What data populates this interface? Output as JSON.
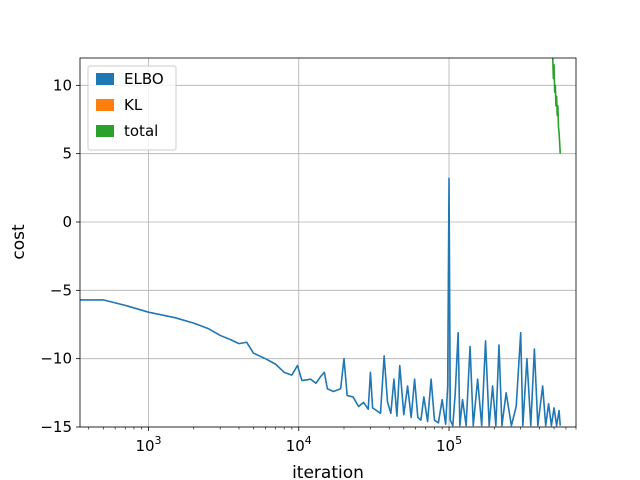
{
  "chart_data": {
    "type": "line",
    "xscale": "log",
    "xlabel": "iteration",
    "ylabel": "cost",
    "xlim": [
      350,
      700000
    ],
    "ylim": [
      -15,
      12
    ],
    "grid": true,
    "legend_position": "top-left",
    "x_ticks": [
      {
        "value": 1000,
        "base": "10",
        "exp": "3"
      },
      {
        "value": 10000,
        "base": "10",
        "exp": "4"
      },
      {
        "value": 100000,
        "base": "10",
        "exp": "5"
      }
    ],
    "y_ticks": [
      {
        "value": -15,
        "label": "−15"
      },
      {
        "value": -10,
        "label": "−10"
      },
      {
        "value": -5,
        "label": "−5"
      },
      {
        "value": 0,
        "label": "0"
      },
      {
        "value": 5,
        "label": "5"
      },
      {
        "value": 10,
        "label": "10"
      }
    ],
    "series": [
      {
        "name": "ELBO",
        "color": "#1f77b4",
        "points": [
          [
            350,
            -5.7
          ],
          [
            500,
            -5.7
          ],
          [
            700,
            -6.1
          ],
          [
            1000,
            -6.6
          ],
          [
            1500,
            -7.0
          ],
          [
            2000,
            -7.4
          ],
          [
            2500,
            -7.8
          ],
          [
            3000,
            -8.3
          ],
          [
            3500,
            -8.6
          ],
          [
            4000,
            -8.9
          ],
          [
            4500,
            -8.8
          ],
          [
            5000,
            -9.6
          ],
          [
            6000,
            -10.0
          ],
          [
            7000,
            -10.4
          ],
          [
            8000,
            -11.0
          ],
          [
            9000,
            -11.2
          ],
          [
            9800,
            -10.5
          ],
          [
            10500,
            -11.6
          ],
          [
            12000,
            -11.5
          ],
          [
            13000,
            -11.8
          ],
          [
            14000,
            -11.3
          ],
          [
            14800,
            -11.0
          ],
          [
            15500,
            -12.2
          ],
          [
            17000,
            -12.4
          ],
          [
            19000,
            -12.2
          ],
          [
            20000,
            -10.0
          ],
          [
            21000,
            -12.7
          ],
          [
            23000,
            -12.8
          ],
          [
            25000,
            -13.5
          ],
          [
            27000,
            -13.2
          ],
          [
            29000,
            -13.7
          ],
          [
            30000,
            -11.0
          ],
          [
            31000,
            -13.6
          ],
          [
            33000,
            -13.8
          ],
          [
            35000,
            -14.0
          ],
          [
            37000,
            -9.8
          ],
          [
            39000,
            -13.2
          ],
          [
            41000,
            -14.0
          ],
          [
            43000,
            -11.5
          ],
          [
            45000,
            -14.2
          ],
          [
            47000,
            -10.5
          ],
          [
            50000,
            -14.1
          ],
          [
            53000,
            -12.0
          ],
          [
            56000,
            -14.3
          ],
          [
            59000,
            -11.5
          ],
          [
            62000,
            -14.3
          ],
          [
            65000,
            -14.5
          ],
          [
            68000,
            -12.8
          ],
          [
            72000,
            -14.6
          ],
          [
            76000,
            -11.5
          ],
          [
            80000,
            -14.5
          ],
          [
            85000,
            -14.7
          ],
          [
            90000,
            -13.0
          ],
          [
            95000,
            -14.8
          ],
          [
            98000,
            -12.0
          ],
          [
            100000,
            3.2
          ],
          [
            102000,
            -14.5
          ],
          [
            106000,
            -14.9
          ],
          [
            110000,
            -12.5
          ],
          [
            115000,
            -8.1
          ],
          [
            118000,
            -14.9
          ],
          [
            123000,
            -13.0
          ],
          [
            130000,
            -14.9
          ],
          [
            138000,
            -9.1
          ],
          [
            145000,
            -14.9
          ],
          [
            155000,
            -11.5
          ],
          [
            165000,
            -14.9
          ],
          [
            175000,
            -8.7
          ],
          [
            185000,
            -14.9
          ],
          [
            195000,
            -12.0
          ],
          [
            205000,
            -14.9
          ],
          [
            215000,
            -9.0
          ],
          [
            225000,
            -14.9
          ],
          [
            240000,
            -12.5
          ],
          [
            260000,
            -14.9
          ],
          [
            280000,
            -13.5
          ],
          [
            300000,
            -8.1
          ],
          [
            310000,
            -14.9
          ],
          [
            330000,
            -10.0
          ],
          [
            350000,
            -14.9
          ],
          [
            370000,
            -9.3
          ],
          [
            390000,
            -14.9
          ],
          [
            420000,
            -12.0
          ],
          [
            440000,
            -14.9
          ],
          [
            460000,
            -13.3
          ],
          [
            480000,
            -14.9
          ],
          [
            500000,
            -13.6
          ],
          [
            520000,
            -14.9
          ],
          [
            540000,
            -13.8
          ],
          [
            550000,
            -14.9
          ]
        ]
      },
      {
        "name": "KL",
        "color": "#ff7f0e",
        "points": []
      },
      {
        "name": "total",
        "color": "#2ca02c",
        "points": [
          [
            490000,
            12.0
          ],
          [
            495000,
            10.5
          ],
          [
            500000,
            11.5
          ],
          [
            505000,
            9.5
          ],
          [
            510000,
            10.0
          ],
          [
            515000,
            8.5
          ],
          [
            520000,
            9.2
          ],
          [
            525000,
            7.8
          ],
          [
            530000,
            8.5
          ],
          [
            535000,
            7.0
          ],
          [
            540000,
            6.5
          ],
          [
            545000,
            5.8
          ],
          [
            550000,
            5.0
          ]
        ]
      }
    ]
  }
}
